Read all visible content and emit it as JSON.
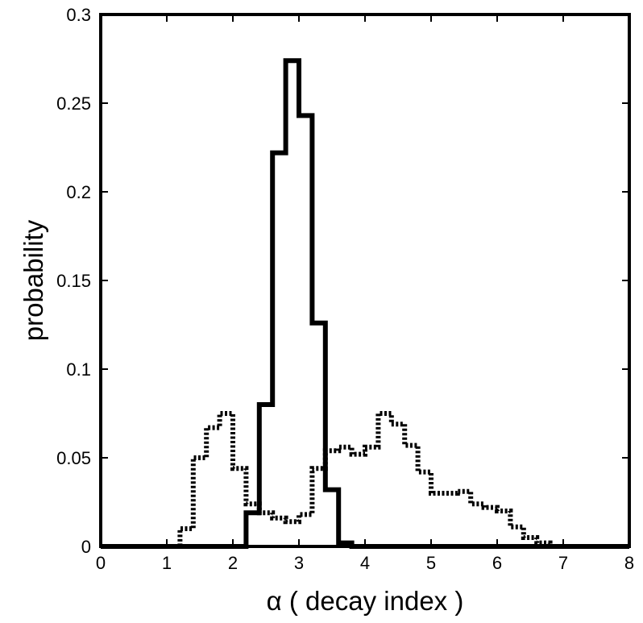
{
  "chart_data": {
    "type": "line",
    "step": true,
    "title": "",
    "xlabel": "α ( decay index )",
    "ylabel": "probability",
    "xlim": [
      0,
      8
    ],
    "ylim": [
      0,
      0.3
    ],
    "xticks": [
      "0",
      "1",
      "2",
      "3",
      "4",
      "5",
      "6",
      "7",
      "8"
    ],
    "yticks": [
      "0",
      "0.05",
      "0.1",
      "0.15",
      "0.2",
      "0.25",
      "0.3"
    ],
    "grid": false,
    "legend": "none",
    "colors": {
      "line": "#000000",
      "background": "#ffffff"
    },
    "series": [
      {
        "style": "solid",
        "edges": [
          0,
          2.2,
          2.4,
          2.6,
          2.8,
          3.0,
          3.2,
          3.4,
          3.6,
          3.8,
          8
        ],
        "values": [
          0,
          0.019,
          0.08,
          0.222,
          0.274,
          0.243,
          0.126,
          0.032,
          0.002,
          0
        ]
      },
      {
        "style": "dotted",
        "edges": [
          0,
          1.2,
          1.4,
          1.6,
          1.8,
          2.0,
          2.2,
          2.4,
          2.6,
          2.8,
          3.0,
          3.2,
          3.4,
          3.6,
          3.8,
          4.0,
          4.2,
          4.4,
          4.6,
          4.8,
          5.0,
          5.2,
          5.4,
          5.6,
          5.8,
          6.0,
          6.2,
          6.4,
          6.6,
          6.8,
          8
        ],
        "values": [
          0,
          0.01,
          0.05,
          0.067,
          0.075,
          0.044,
          0.024,
          0.019,
          0.016,
          0.014,
          0.018,
          0.044,
          0.054,
          0.056,
          0.052,
          0.056,
          0.075,
          0.069,
          0.057,
          0.042,
          0.03,
          0.03,
          0.031,
          0.024,
          0.022,
          0.02,
          0.011,
          0.005,
          0.002,
          0
        ]
      }
    ]
  }
}
